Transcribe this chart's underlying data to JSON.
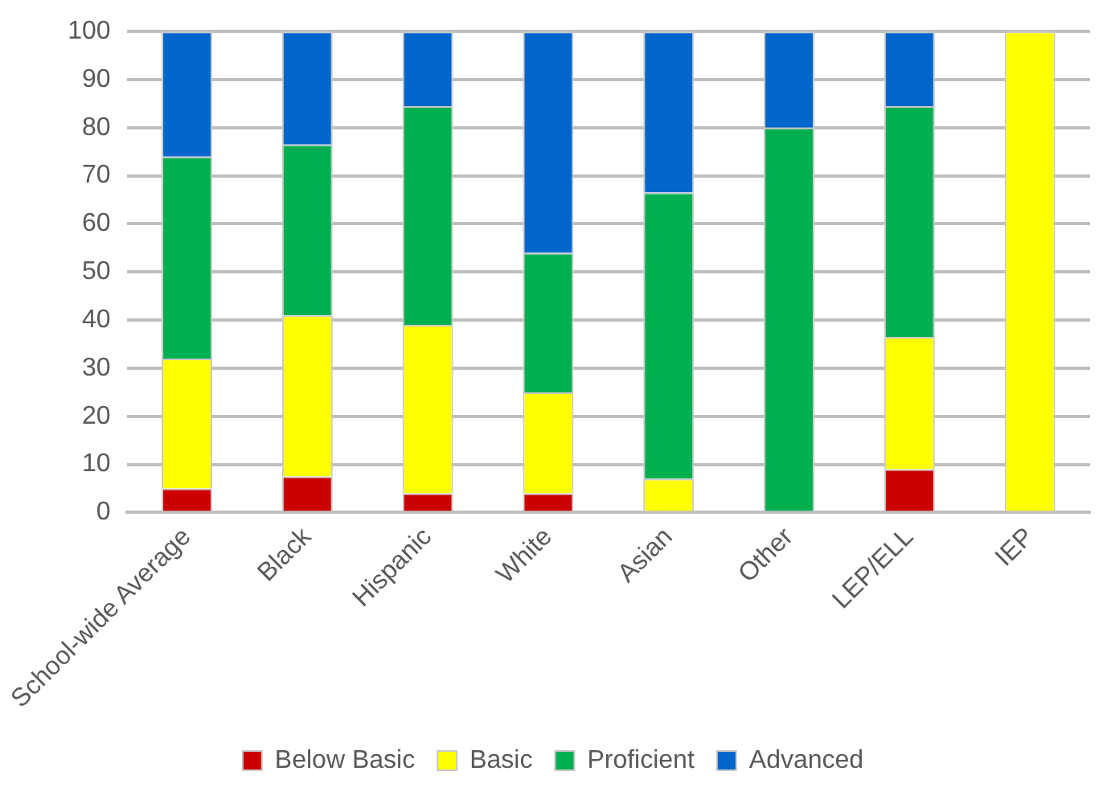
{
  "chart_data": {
    "type": "bar",
    "stacked": true,
    "categories": [
      "School-wide Average",
      "Black",
      "Hispanic",
      "White",
      "Asian",
      "Other",
      "LEP/ELL",
      "IEP"
    ],
    "series": [
      {
        "name": "Below Basic",
        "color": "#cc0000",
        "values": [
          5,
          7.5,
          4,
          4,
          0,
          0,
          9,
          0
        ]
      },
      {
        "name": "Basic",
        "color": "#ffff00",
        "values": [
          27,
          33.5,
          35,
          21,
          7,
          0,
          27.5,
          100
        ]
      },
      {
        "name": "Proficient",
        "color": "#00b050",
        "values": [
          42,
          35.5,
          45.5,
          29,
          59.5,
          80,
          48,
          0
        ]
      },
      {
        "name": "Advanced",
        "color": "#0066cc",
        "values": [
          26,
          23.5,
          15.5,
          46,
          33.5,
          20,
          15.5,
          0
        ]
      }
    ],
    "ylim": [
      0,
      100
    ],
    "yticks": [
      0,
      10,
      20,
      30,
      40,
      50,
      60,
      70,
      80,
      90,
      100
    ],
    "grid": "y",
    "legend": "bottom"
  }
}
